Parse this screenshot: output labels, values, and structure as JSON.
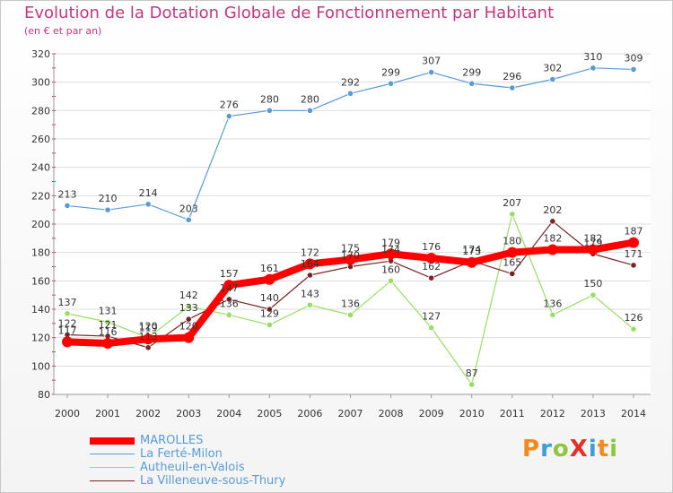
{
  "header": {
    "title": "Evolution de la Dotation Globale de Fonctionnement par Habitant",
    "subtitle": "(en € et par an)"
  },
  "logo": {
    "text": "ProXiti",
    "letters": [
      "P",
      "r",
      "o",
      "X",
      "i",
      "t",
      "i"
    ],
    "colors": [
      "#f28a1c",
      "#3b9fd8",
      "#8dc63f",
      "#e4322b",
      "#3b9fd8",
      "#f28a1c",
      "#8dc63f"
    ]
  },
  "chart_data": {
    "type": "line",
    "title": "Evolution de la Dotation Globale de Fonctionnement par Habitant",
    "subtitle": "(en € et par an)",
    "x": [
      "2000",
      "2001",
      "2002",
      "2003",
      "2004",
      "2005",
      "2006",
      "2007",
      "2008",
      "2009",
      "2010",
      "2011",
      "2012",
      "2013",
      "2014"
    ],
    "ylim": [
      80,
      320
    ],
    "yticks": [
      80,
      100,
      120,
      140,
      160,
      180,
      200,
      220,
      240,
      260,
      280,
      300,
      320
    ],
    "grid": "horizontal",
    "legend_position": "bottom",
    "series": [
      {
        "name": "MAROLLES",
        "color": "#ff0000",
        "values": [
          117,
          116,
          119,
          120,
          157,
          161,
          172,
          175,
          179,
          176,
          173,
          180,
          182,
          182,
          187
        ]
      },
      {
        "name": "La Ferté-Milon",
        "color": "#5b9bd5",
        "values": [
          213,
          210,
          214,
          203,
          276,
          280,
          280,
          292,
          299,
          307,
          299,
          296,
          302,
          310,
          309
        ]
      },
      {
        "name": "Autheuil-en-Valois",
        "color": "#99dd66",
        "values": [
          137,
          131,
          120,
          142,
          136,
          129,
          143,
          136,
          160,
          127,
          87,
          207,
          136,
          150,
          126
        ]
      },
      {
        "name": "La Villeneuve-sous-Thury",
        "color": "#7a2525",
        "values": [
          122,
          121,
          113,
          133,
          147,
          140,
          164,
          170,
          174,
          162,
          174,
          165,
          202,
          179,
          171
        ]
      }
    ]
  }
}
